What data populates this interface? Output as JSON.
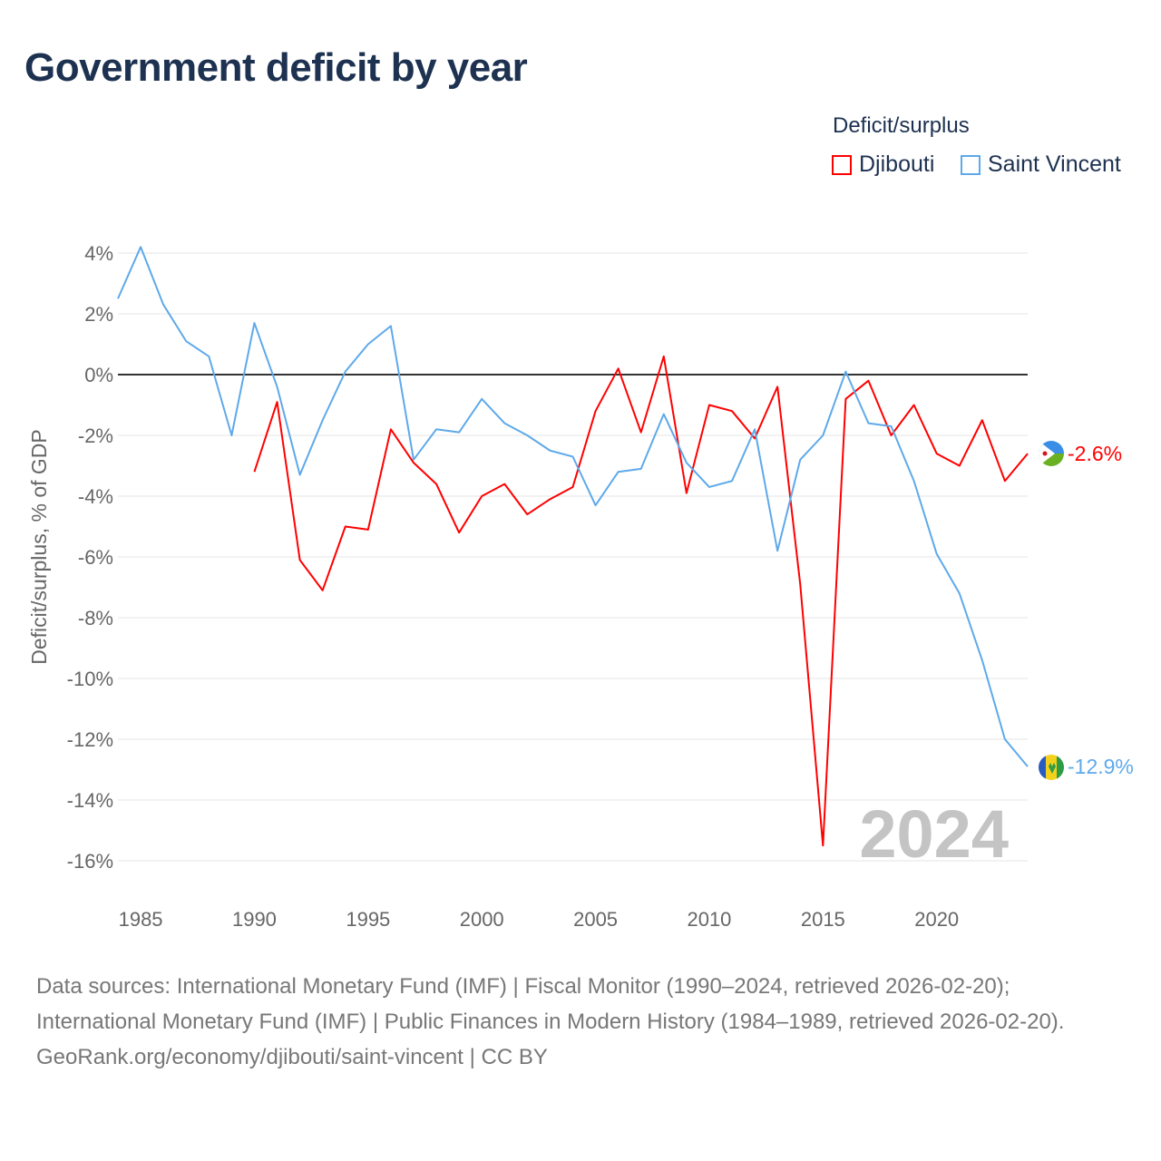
{
  "title": "Government deficit by year",
  "legend": {
    "title": "Deficit/surplus",
    "items": [
      {
        "name": "Djibouti",
        "color": "#ff0000"
      },
      {
        "name": "Saint Vincent",
        "color": "#5ea9ea"
      }
    ]
  },
  "chart_data": {
    "type": "line",
    "title": "Government deficit by year",
    "xlabel": "",
    "ylabel": "Deficit/surplus, % of GDP",
    "ylim": [
      -17,
      4.5
    ],
    "xlim": [
      1984,
      2024
    ],
    "yticks": [
      4,
      2,
      0,
      -2,
      -4,
      -6,
      -8,
      -10,
      -12,
      -14,
      -16
    ],
    "ytick_labels": [
      "4%",
      "2%",
      "0%",
      "-2%",
      "-4%",
      "-6%",
      "-8%",
      "-10%",
      "-12%",
      "-14%",
      "-16%"
    ],
    "xticks": [
      1985,
      1990,
      1995,
      2000,
      2005,
      2010,
      2015,
      2020
    ],
    "xtick_labels": [
      "1985",
      "1990",
      "1995",
      "2000",
      "2005",
      "2010",
      "2015",
      "2020"
    ],
    "grid": true,
    "legend_position": "top-right",
    "year_label": "2024",
    "series": [
      {
        "name": "Djibouti",
        "color": "#ff0000",
        "end_label": "-2.6%",
        "x": [
          1990,
          1991,
          1992,
          1993,
          1994,
          1995,
          1996,
          1997,
          1998,
          1999,
          2000,
          2001,
          2002,
          2003,
          2004,
          2005,
          2006,
          2007,
          2008,
          2009,
          2010,
          2011,
          2012,
          2013,
          2014,
          2015,
          2016,
          2017,
          2018,
          2019,
          2020,
          2021,
          2022,
          2023,
          2024
        ],
        "values": [
          -3.2,
          -0.9,
          -6.1,
          -7.1,
          -5.0,
          -5.1,
          -1.8,
          -2.9,
          -3.6,
          -5.2,
          -4.0,
          -3.6,
          -4.6,
          -4.1,
          -3.7,
          -1.2,
          0.2,
          -1.9,
          0.6,
          -3.9,
          -1.0,
          -1.2,
          -2.1,
          -0.4,
          -6.9,
          -15.5,
          -0.8,
          -0.2,
          -2.0,
          -1.0,
          -2.6,
          -3.0,
          -1.5,
          -3.5,
          -2.6
        ]
      },
      {
        "name": "Saint Vincent",
        "color": "#5ea9ea",
        "end_label": "-12.9%",
        "x": [
          1984,
          1985,
          1986,
          1987,
          1988,
          1989,
          1990,
          1991,
          1992,
          1993,
          1994,
          1995,
          1996,
          1997,
          1998,
          1999,
          2000,
          2001,
          2002,
          2003,
          2004,
          2005,
          2006,
          2007,
          2008,
          2009,
          2010,
          2011,
          2012,
          2013,
          2014,
          2015,
          2016,
          2017,
          2018,
          2019,
          2020,
          2021,
          2022,
          2023,
          2024
        ],
        "values": [
          2.5,
          4.2,
          2.3,
          1.1,
          0.6,
          -2.0,
          1.7,
          -0.4,
          -3.3,
          -1.5,
          0.1,
          1.0,
          1.6,
          -2.8,
          -1.8,
          -1.9,
          -0.8,
          -1.6,
          -2.0,
          -2.5,
          -2.7,
          -4.3,
          -3.2,
          -3.1,
          -1.3,
          -2.9,
          -3.7,
          -3.5,
          -1.8,
          -5.8,
          -2.8,
          -2.0,
          0.1,
          -1.6,
          -1.7,
          -3.5,
          -5.9,
          -7.2,
          -9.4,
          -12.0,
          -12.9
        ]
      }
    ]
  },
  "footer": {
    "sources": "Data sources: International Monetary Fund (IMF) | Fiscal Monitor (1990–2024, retrieved 2026-02-20); International Monetary Fund (IMF) | Public Finances in Modern History (1984–1989, retrieved 2026-02-20).",
    "credit": "GeoRank.org/economy/djibouti/saint-vincent | CC BY"
  }
}
